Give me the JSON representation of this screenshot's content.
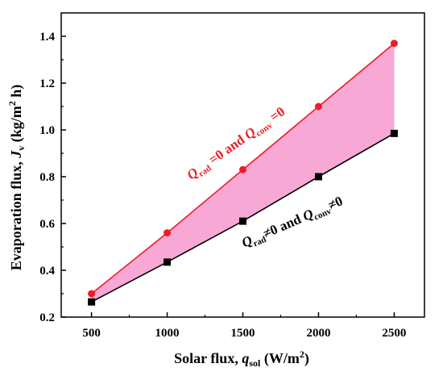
{
  "chart_data": {
    "type": "line",
    "x": [
      500,
      1000,
      1500,
      2000,
      2500
    ],
    "xlim": [
      300,
      2700
    ],
    "ylim": [
      0.2,
      1.5
    ],
    "xticks": [
      "500",
      "1000",
      "1500",
      "2000",
      "2500"
    ],
    "yticks": [
      "0.2",
      "0.4",
      "0.6",
      "0.8",
      "1.0",
      "1.2",
      "1.4"
    ],
    "xlabel": {
      "main": "Solar flux, ",
      "var": "q",
      "sub": "sol",
      "unit": " (W/m",
      "sup": "2",
      "close": ")"
    },
    "ylabel": {
      "main": "Evaporation flux, ",
      "var": "J",
      "sub": "v",
      "unit": " (kg/m",
      "sup": "2",
      "close": " h)"
    },
    "series": [
      {
        "values": [
          0.3,
          0.56,
          0.83,
          1.1,
          1.37
        ],
        "color": "#ee1c25",
        "marker": "circle"
      },
      {
        "values": [
          0.265,
          0.435,
          0.61,
          0.8,
          0.985
        ],
        "color": "#000000",
        "marker": "square"
      }
    ],
    "fill_between": {
      "color": "#f8a8d5"
    },
    "annotations": [
      {
        "q1": "Q",
        "sub1": "rad",
        "mid": " =0 and ",
        "q2": "Q",
        "sub2": "conv",
        "end": " =0",
        "color": "#ee1c25"
      },
      {
        "q1": "Q",
        "sub1": "rad",
        "mid": "≠0 and ",
        "q2": "Q",
        "sub2": "conv",
        "end": "≠0",
        "color": "#000000"
      }
    ]
  }
}
